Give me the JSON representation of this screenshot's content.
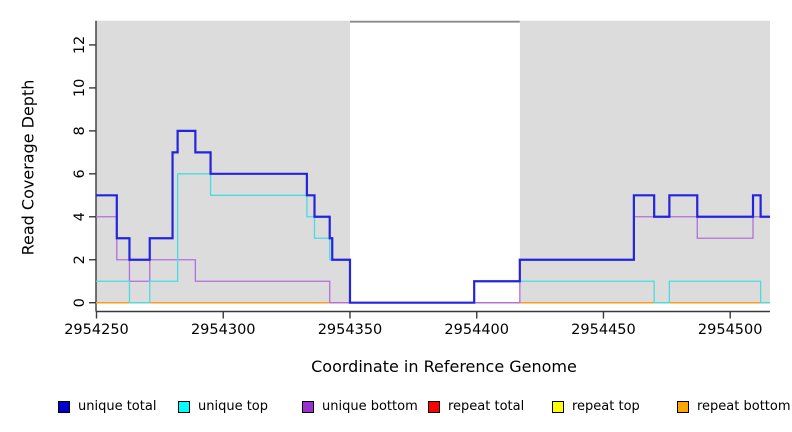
{
  "chart_data": {
    "type": "line",
    "subtype": "step-coverage",
    "title": "",
    "xlabel": "Coordinate in Reference Genome",
    "ylabel": "Read Coverage Depth",
    "xlim": [
      2954249.8,
      2954515.7
    ],
    "ylim": [
      -0.4,
      13.1
    ],
    "xticks": [
      2954250,
      2954300,
      2954350,
      2954400,
      2954450,
      2954500
    ],
    "yticks": [
      0,
      2,
      4,
      6,
      8,
      10,
      12
    ],
    "grid": "off",
    "plot_background_color": "#dcdcdc",
    "highlight_region": {
      "x0": 2954350,
      "x1": 2954417,
      "color": "#ffffff",
      "top_border_color": "#8a8a8a"
    },
    "axis_color": "#3a3a3a",
    "legend_position": "bottom",
    "series": [
      {
        "name": "repeat total",
        "legend_color": "#ff0000",
        "line_color": "#e02020",
        "line_width": 1.3,
        "points": [
          [
            2954249.8,
            0
          ]
        ]
      },
      {
        "name": "repeat top",
        "legend_color": "#ffff00",
        "line_color": "#ffeb00",
        "line_width": 1.3,
        "points": [
          [
            2954249.8,
            0
          ]
        ]
      },
      {
        "name": "repeat bottom",
        "legend_color": "#ffa500",
        "line_color": "#ff9c1b",
        "line_width": 1.5,
        "points": [
          [
            2954249.8,
            0
          ]
        ]
      },
      {
        "name": "unique bottom",
        "legend_color": "#9932cc",
        "line_color": "#b26fdd",
        "line_width": 1.3,
        "points": [
          [
            2954249.8,
            4
          ],
          [
            2954258,
            2
          ],
          [
            2954263,
            1
          ],
          [
            2954271,
            2
          ],
          [
            2954289,
            1
          ],
          [
            2954342,
            0
          ],
          [
            2954417,
            2
          ],
          [
            2954462,
            4
          ],
          [
            2954487,
            3
          ],
          [
            2954509,
            4
          ]
        ]
      },
      {
        "name": "unique top",
        "legend_color": "#00ffff",
        "line_color": "#48dde0",
        "line_width": 1.3,
        "points": [
          [
            2954249.8,
            1
          ],
          [
            2954263,
            0
          ],
          [
            2954271,
            1
          ],
          [
            2954282,
            6
          ],
          [
            2954295,
            5
          ],
          [
            2954333,
            4
          ],
          [
            2954336,
            3
          ],
          [
            2954342,
            2
          ],
          [
            2954350,
            0
          ],
          [
            2954399,
            1
          ],
          [
            2954470,
            0
          ],
          [
            2954476,
            1
          ],
          [
            2954512,
            0
          ]
        ]
      },
      {
        "name": "unique total",
        "legend_color": "#0000cd",
        "line_color": "#2424de",
        "line_width": 2.2,
        "points": [
          [
            2954249.8,
            5
          ],
          [
            2954258,
            3
          ],
          [
            2954263,
            2
          ],
          [
            2954271,
            3
          ],
          [
            2954280,
            7
          ],
          [
            2954282,
            8
          ],
          [
            2954289,
            7
          ],
          [
            2954295,
            6
          ],
          [
            2954333,
            5
          ],
          [
            2954336,
            4
          ],
          [
            2954342,
            3
          ],
          [
            2954343,
            2
          ],
          [
            2954350,
            0
          ],
          [
            2954399,
            1
          ],
          [
            2954417,
            2
          ],
          [
            2954462,
            5
          ],
          [
            2954470,
            4
          ],
          [
            2954476,
            5
          ],
          [
            2954487,
            4
          ],
          [
            2954509,
            5
          ],
          [
            2954512,
            4
          ]
        ]
      }
    ],
    "legend": [
      {
        "label": "unique total",
        "color": "#0000cd"
      },
      {
        "label": "unique top",
        "color": "#00ffff"
      },
      {
        "label": "unique bottom",
        "color": "#9932cc"
      },
      {
        "label": "repeat total",
        "color": "#ff0000"
      },
      {
        "label": "repeat top",
        "color": "#ffff00"
      },
      {
        "label": "repeat bottom",
        "color": "#ffa500"
      }
    ]
  }
}
